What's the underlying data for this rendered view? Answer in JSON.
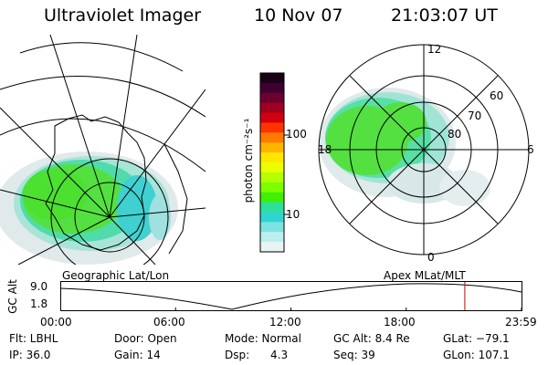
{
  "header": {
    "instrument": "Ultraviolet Imager",
    "date": "10 Nov 07",
    "time": "21:03:07 UT"
  },
  "colorbar": {
    "unit_label": "photon cm⁻²s⁻¹",
    "ticks": [
      "100",
      "10"
    ],
    "colors": [
      "#1a0015",
      "#3d0030",
      "#6b0030",
      "#a00020",
      "#d00010",
      "#ff3300",
      "#ff7a00",
      "#ffb400",
      "#ffe600",
      "#eaff00",
      "#b4ff00",
      "#7cff00",
      "#40f000",
      "#2ee09a",
      "#30d4d0",
      "#7de2e2",
      "#bdeeee",
      "#e6f4f4"
    ]
  },
  "left_panel": {
    "caption": "Geographic Lat/Lon"
  },
  "right_panel": {
    "caption": "Apex  MLat/MLT",
    "mlt_labels": {
      "top": "12",
      "left": "18",
      "right": "6",
      "bottom": "0"
    },
    "lat_labels": [
      "60",
      "70",
      "80"
    ]
  },
  "altitude_plot": {
    "axis_label": "GC Alt",
    "y_ticks": [
      "9.0",
      "1.8"
    ],
    "x_ticks": [
      "00:00",
      "06:00",
      "12:00",
      "18:00",
      "23:59"
    ],
    "marker_color": "#cc0000",
    "marker_time_hours": 21.05
  },
  "status": {
    "filter": "Flt: LBHL",
    "door": "Door: Open",
    "mode": "Mode: Normal",
    "gc_alt": "GC Alt: 8.4 Re",
    "glat": "GLat: −79.1",
    "ip": "IP: 36.0",
    "gain": "Gain: 14",
    "dsp_label": "Dsp:",
    "dsp_value": "4.3",
    "seq": "Seq: 39",
    "glon": "GLon: 107.1"
  }
}
